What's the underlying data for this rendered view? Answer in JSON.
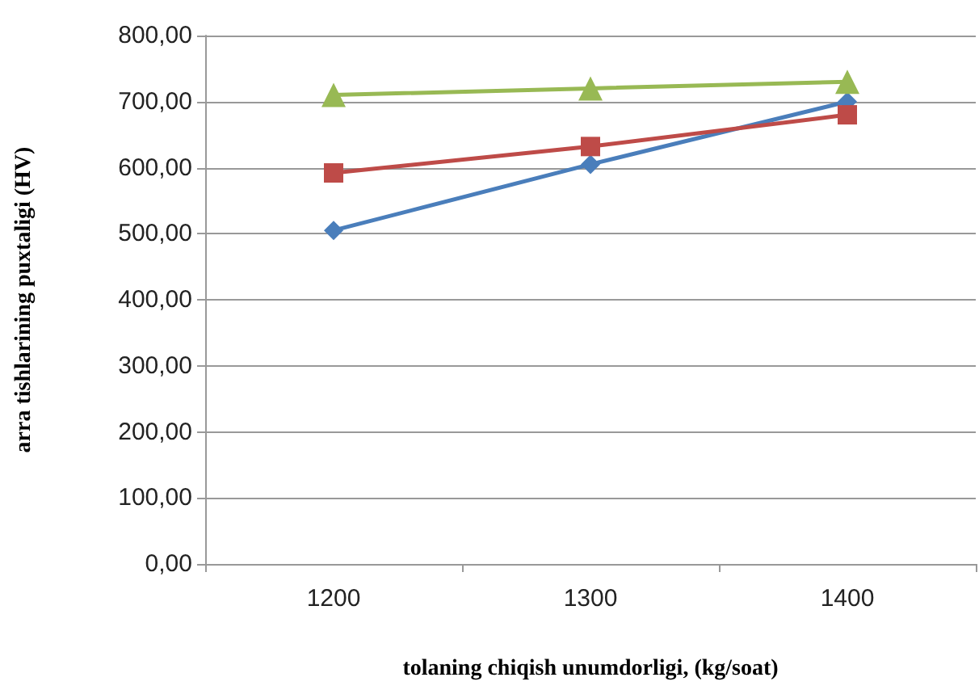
{
  "chart_data": {
    "type": "line",
    "xlabel": "tolaning chiqish unumdorligi, (kg/soat)",
    "ylabel": "arra tishlarining puxtaligi (HV)",
    "categories": [
      "1200",
      "1300",
      "1400"
    ],
    "series": [
      {
        "color": "#4a7ebb",
        "marker": "diamond",
        "values": [
          505,
          605,
          700
        ]
      },
      {
        "color": "#be4b48",
        "marker": "square",
        "values": [
          592,
          632,
          680
        ]
      },
      {
        "color": "#98b954",
        "marker": "triangle",
        "values": [
          710,
          720,
          730
        ]
      }
    ],
    "ylim": [
      0,
      800
    ],
    "yticks": [
      {
        "value": 0,
        "label": "0,00"
      },
      {
        "value": 100,
        "label": "100,00"
      },
      {
        "value": 200,
        "label": "200,00"
      },
      {
        "value": 300,
        "label": "300,00"
      },
      {
        "value": 400,
        "label": "400,00"
      },
      {
        "value": 500,
        "label": "500,00"
      },
      {
        "value": 600,
        "label": "600,00"
      },
      {
        "value": 700,
        "label": "700,00"
      },
      {
        "value": 800,
        "label": "800,00"
      }
    ],
    "grid": "y"
  }
}
